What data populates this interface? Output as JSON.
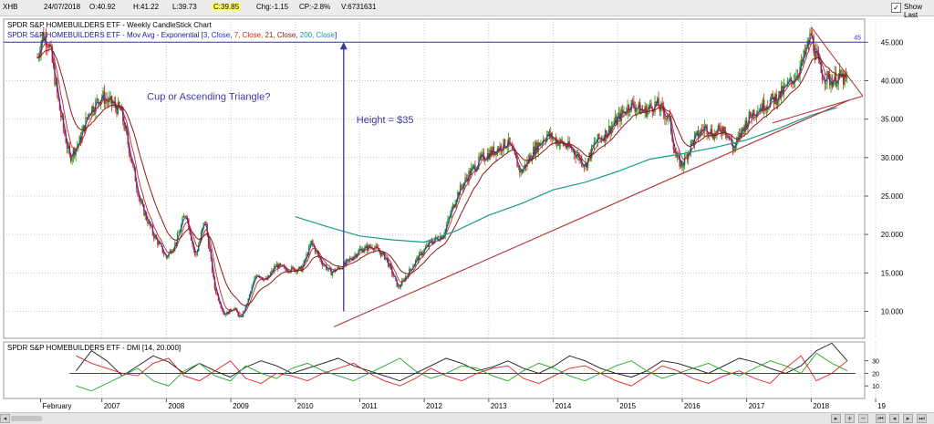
{
  "header": {
    "symbol": "XHB",
    "date": "24/07/2018",
    "open": "O:40.92",
    "high": "H:41.22",
    "low": "L:39.73",
    "close": "C:39.85",
    "change": "Chg:-1.15",
    "change_pct": "CP:-2.8%",
    "volume": "V:6731631",
    "show_last": "Show Last"
  },
  "chart_data": [
    {
      "type": "line",
      "title": "SPDR S&P HOMEBUILDERS ETF - Weekly CandleStick Chart",
      "subtitle_prefix": "SPDR S&P HOMEBUILDERS ETF - Mov Avg - Exponential",
      "subtitle_bracket_open": "[",
      "subtitle_bracket_close": "]",
      "ma_legend": [
        {
          "text": "3, Close,",
          "color": "#2233bb"
        },
        {
          "text": "7, Close,",
          "color": "#cc2222"
        },
        {
          "text": "21, Close,",
          "color": "#8b1a1a"
        },
        {
          "text": "200, Close",
          "color": "#1a9a8a"
        }
      ],
      "xlabel": "",
      "ylabel": "",
      "x_ticks": [
        "February",
        "2007",
        "2008",
        "2009",
        "2010",
        "2011",
        "2012",
        "2013",
        "2014",
        "2015",
        "2016",
        "2017",
        "2018",
        "19"
      ],
      "y_ticks": [
        "10.000",
        "15.000",
        "20.000",
        "25.000",
        "30.000",
        "35.000",
        "40.000",
        "45.000"
      ],
      "ylim": [
        6.5,
        48
      ],
      "xlim": [
        2006.0,
        2019.0
      ],
      "grid": true,
      "colors": {
        "price_up": "#1a9a1a",
        "price_down": "#cc2222",
        "ma3": "#2233bb",
        "ma7": "#cc2222",
        "ma21": "#8b1a1a",
        "ma200": "#1a9a8a",
        "trend": "#b03030",
        "hline": "#3a3a9a"
      },
      "price_keypoints": [
        [
          2006.0,
          43
        ],
        [
          2006.08,
          46
        ],
        [
          2006.18,
          45
        ],
        [
          2006.35,
          36
        ],
        [
          2006.5,
          30
        ],
        [
          2006.65,
          32
        ],
        [
          2006.8,
          36
        ],
        [
          2007.0,
          38
        ],
        [
          2007.15,
          37
        ],
        [
          2007.3,
          36
        ],
        [
          2007.45,
          30
        ],
        [
          2007.6,
          24
        ],
        [
          2007.8,
          20
        ],
        [
          2008.0,
          17
        ],
        [
          2008.15,
          19
        ],
        [
          2008.3,
          23
        ],
        [
          2008.45,
          17
        ],
        [
          2008.6,
          22
        ],
        [
          2008.75,
          13
        ],
        [
          2008.9,
          9.5
        ],
        [
          2009.05,
          10.5
        ],
        [
          2009.15,
          9
        ],
        [
          2009.25,
          11
        ],
        [
          2009.4,
          15
        ],
        [
          2009.55,
          14
        ],
        [
          2009.7,
          16
        ],
        [
          2009.85,
          15.5
        ],
        [
          2010.1,
          15.5
        ],
        [
          2010.25,
          19
        ],
        [
          2010.4,
          16.5
        ],
        [
          2010.55,
          15
        ],
        [
          2010.75,
          16
        ],
        [
          2011.0,
          18
        ],
        [
          2011.2,
          18.5
        ],
        [
          2011.4,
          17
        ],
        [
          2011.6,
          13
        ],
        [
          2011.75,
          15
        ],
        [
          2011.9,
          17
        ],
        [
          2012.1,
          19
        ],
        [
          2012.3,
          20
        ],
        [
          2012.5,
          25
        ],
        [
          2012.7,
          28
        ],
        [
          2012.9,
          30
        ],
        [
          2013.1,
          31
        ],
        [
          2013.3,
          32
        ],
        [
          2013.5,
          28
        ],
        [
          2013.7,
          31
        ],
        [
          2013.9,
          33
        ],
        [
          2014.1,
          32
        ],
        [
          2014.3,
          31
        ],
        [
          2014.5,
          29
        ],
        [
          2014.65,
          32
        ],
        [
          2014.8,
          33
        ],
        [
          2015.0,
          35
        ],
        [
          2015.2,
          37
        ],
        [
          2015.4,
          36
        ],
        [
          2015.6,
          37
        ],
        [
          2015.8,
          35
        ],
        [
          2015.9,
          30
        ],
        [
          2016.0,
          29
        ],
        [
          2016.15,
          32
        ],
        [
          2016.35,
          34
        ],
        [
          2016.5,
          33
        ],
        [
          2016.65,
          34
        ],
        [
          2016.8,
          31
        ],
        [
          2016.95,
          34
        ],
        [
          2017.1,
          36
        ],
        [
          2017.3,
          37
        ],
        [
          2017.5,
          38
        ],
        [
          2017.7,
          40
        ],
        [
          2017.85,
          42
        ],
        [
          2018.0,
          46
        ],
        [
          2018.05,
          44
        ],
        [
          2018.15,
          41
        ],
        [
          2018.3,
          40
        ],
        [
          2018.45,
          40.5
        ],
        [
          2018.56,
          39.85
        ]
      ],
      "ma200_keypoints": [
        [
          2010.0,
          22.3
        ],
        [
          2010.5,
          21
        ],
        [
          2011.0,
          19.8
        ],
        [
          2011.5,
          19.3
        ],
        [
          2012.0,
          19
        ],
        [
          2012.5,
          20.5
        ],
        [
          2013.0,
          22.5
        ],
        [
          2013.5,
          24
        ],
        [
          2014.0,
          25.8
        ],
        [
          2014.5,
          26.8
        ],
        [
          2015.0,
          28.2
        ],
        [
          2015.5,
          29.8
        ],
        [
          2016.0,
          30.5
        ],
        [
          2016.5,
          31.3
        ],
        [
          2017.0,
          32.3
        ],
        [
          2017.5,
          33.8
        ],
        [
          2018.0,
          35.5
        ],
        [
          2018.4,
          36.5
        ]
      ],
      "annotations": {
        "hline_value": 45,
        "hline_label": "45",
        "arrow_x": 2010.75,
        "arrow_from": 10,
        "arrow_to": 45,
        "height_label": "Height = $35",
        "pattern_label": "Cup or Ascending Triangle?",
        "trendline": [
          [
            2010.6,
            8
          ],
          [
            2018.6,
            37.5
          ]
        ],
        "wedge_top": [
          [
            2018.0,
            47
          ],
          [
            2018.8,
            38
          ]
        ],
        "wedge_bottom": [
          [
            2017.4,
            34.5
          ],
          [
            2018.8,
            38
          ]
        ]
      }
    },
    {
      "type": "line",
      "title": "SPDR S&P HOMEBUILDERS ETF - DMI [14, 20.000]",
      "y_ticks": [
        "10",
        "20",
        "30"
      ],
      "ylim": [
        0,
        45
      ],
      "reference_line": 20,
      "series": [
        {
          "color": "#1a1a1a",
          "values": [
            22,
            38,
            30,
            18,
            26,
            34,
            29,
            20,
            28,
            22,
            17,
            25,
            30,
            26,
            20,
            24,
            28,
            32,
            26,
            22,
            18,
            14,
            20,
            26,
            32,
            28,
            22,
            25,
            30,
            24,
            20,
            26,
            34,
            30,
            24,
            20,
            17,
            22,
            30,
            28,
            24,
            20,
            26,
            32,
            29,
            24,
            20,
            26,
            38,
            44,
            30
          ]
        },
        {
          "color": "#22aa22",
          "values": [
            10,
            6,
            12,
            18,
            24,
            14,
            10,
            22,
            28,
            18,
            14,
            26,
            20,
            16,
            24,
            28,
            22,
            18,
            14,
            20,
            26,
            32,
            22,
            16,
            20,
            26,
            24,
            18,
            14,
            22,
            28,
            24,
            18,
            14,
            20,
            26,
            30,
            22,
            16,
            20,
            24,
            28,
            22,
            18,
            24,
            30,
            26,
            20,
            36,
            28,
            22
          ]
        },
        {
          "color": "#dd2222",
          "values": [
            34,
            28,
            24,
            20,
            18,
            28,
            32,
            18,
            14,
            22,
            30,
            16,
            12,
            20,
            18,
            14,
            20,
            24,
            28,
            20,
            14,
            10,
            16,
            24,
            18,
            14,
            20,
            24,
            26,
            16,
            12,
            18,
            24,
            26,
            20,
            14,
            10,
            18,
            26,
            22,
            16,
            12,
            18,
            22,
            16,
            12,
            24,
            34,
            14,
            20,
            30
          ]
        }
      ]
    }
  ]
}
